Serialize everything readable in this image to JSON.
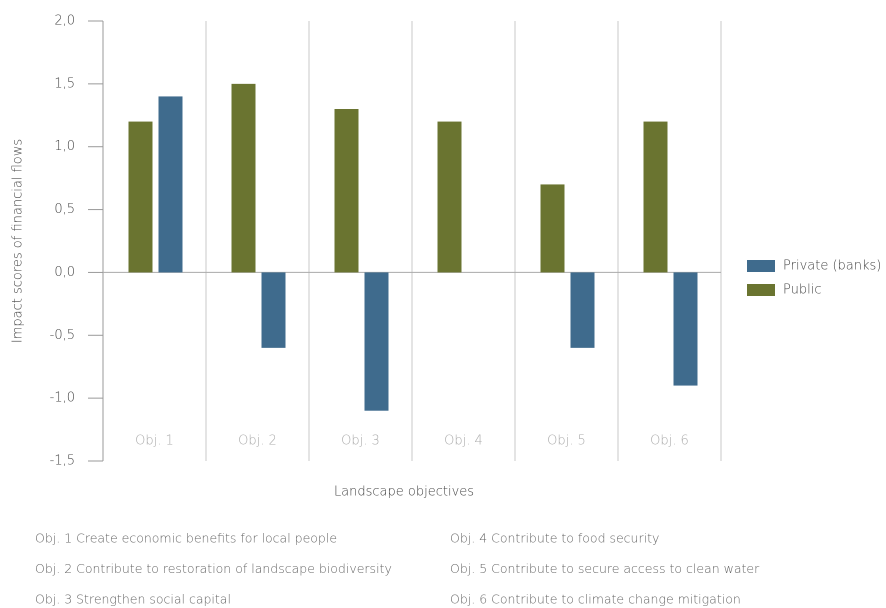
{
  "chart_data": {
    "type": "bar",
    "ylabel": "Impact scores of financial flows",
    "xlabel": "Landscape objectives",
    "categories": [
      "Obj. 1",
      "Obj. 2",
      "Obj. 3",
      "Obj. 4",
      "Obj. 5",
      "Obj. 6"
    ],
    "series": [
      {
        "name": "Private (banks)",
        "color": "#3f6b8d",
        "values": [
          1.4,
          -0.6,
          -1.1,
          null,
          -0.6,
          -0.9
        ]
      },
      {
        "name": "Public",
        "color": "#6a7430",
        "values": [
          1.2,
          1.5,
          1.3,
          1.2,
          0.7,
          1.2
        ]
      }
    ],
    "ylim": [
      -1.5,
      2.0
    ],
    "yticks": [
      {
        "value": -1.5,
        "label": "-1,5"
      },
      {
        "value": -1.0,
        "label": "-1,0"
      },
      {
        "value": -0.5,
        "label": "-0,5"
      },
      {
        "value": 0,
        "label": "0,0"
      },
      {
        "value": 0.5,
        "label": "0,5"
      },
      {
        "value": 1.0,
        "label": "1,0"
      },
      {
        "value": 1.5,
        "label": "1,5"
      },
      {
        "value": 2.0,
        "label": "2,0"
      }
    ],
    "legend": "right",
    "notes": [
      "Obj. 1 Create economic benefits for local people",
      "Obj. 2 Contribute to restoration of landscape biodiversity",
      "Obj. 3 Strengthen social capital",
      "Obj. 4 Contribute to food security",
      "Obj. 5 Contribute to secure access to clean water",
      "Obj. 6 Contribute to climate change mitigation"
    ]
  }
}
